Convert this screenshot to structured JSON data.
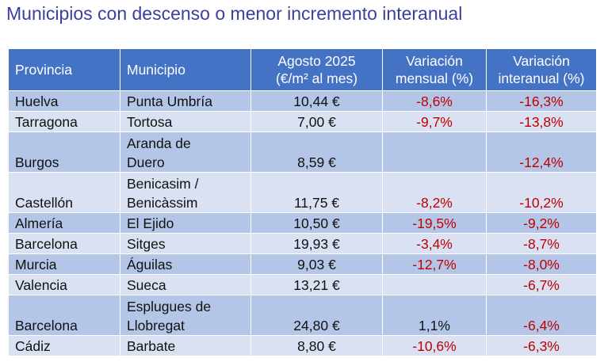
{
  "title": "Municipios con descenso o menor incremento interanual",
  "colors": {
    "header_bg": "#4472c4",
    "row_odd": "#b4c6e7",
    "row_even": "#d9e1f2",
    "negative": "#c00000",
    "title": "#3a3fa0"
  },
  "table": {
    "headers": {
      "provincia": "Provincia",
      "municipio": "Municipio",
      "agosto_line1": "Agosto 2025",
      "agosto_line2": "(€/m² al mes)",
      "mensual_line1": "Variación",
      "mensual_line2": "mensual (%)",
      "interanual_line1": "Variación",
      "interanual_line2": "interanual (%)"
    },
    "rows": [
      {
        "provincia": "Huelva",
        "municipio_l1": "Punta Umbría",
        "municipio_l2": "",
        "precio": "10,44 €",
        "mensual": "-8,6%",
        "interanual": "-16,3%"
      },
      {
        "provincia": "Tarragona",
        "municipio_l1": "Tortosa",
        "municipio_l2": "",
        "precio": "7,00 €",
        "mensual": "-9,7%",
        "interanual": "-13,8%"
      },
      {
        "provincia": "Burgos",
        "municipio_l1": "Aranda de",
        "municipio_l2": "Duero",
        "precio": "8,59 €",
        "mensual": "",
        "interanual": "-12,4%"
      },
      {
        "provincia": "Castellón",
        "municipio_l1": "Benicasim /",
        "municipio_l2": "Benicàssim",
        "precio": "11,75 €",
        "mensual": "-8,2%",
        "interanual": "-10,2%"
      },
      {
        "provincia": "Almería",
        "municipio_l1": "El Ejido",
        "municipio_l2": "",
        "precio": "10,50 €",
        "mensual": "-19,5%",
        "interanual": "-9,2%"
      },
      {
        "provincia": "Barcelona",
        "municipio_l1": "Sitges",
        "municipio_l2": "",
        "precio": "19,93 €",
        "mensual": "-3,4%",
        "interanual": "-8,7%"
      },
      {
        "provincia": "Murcia",
        "municipio_l1": "Águilas",
        "municipio_l2": "",
        "precio": "9,03 €",
        "mensual": "-12,7%",
        "interanual": "-8,0%"
      },
      {
        "provincia": "Valencia",
        "municipio_l1": "Sueca",
        "municipio_l2": "",
        "precio": "13,21 €",
        "mensual": "",
        "interanual": "-6,7%"
      },
      {
        "provincia": "Barcelona",
        "municipio_l1": "Esplugues de",
        "municipio_l2": "Llobregat",
        "precio": "24,80 €",
        "mensual": "1,1%",
        "interanual": "-6,4%"
      },
      {
        "provincia": "Cádiz",
        "municipio_l1": "Barbate",
        "municipio_l2": "",
        "precio": "8,80 €",
        "mensual": "-10,6%",
        "interanual": "-6,3%"
      }
    ]
  }
}
